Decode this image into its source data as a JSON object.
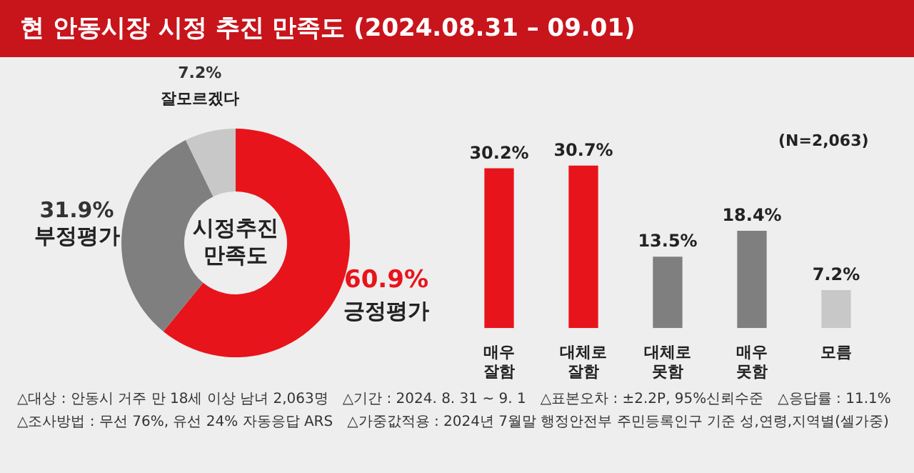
{
  "chart_data": [
    {
      "type": "donut",
      "title": "현 안동시장 시정 추진 만족도 (2024.08.31 – 09.01)",
      "categories": [
        "긍정평가",
        "부정평가",
        "잘모르겠다"
      ],
      "values": [
        60.9,
        31.9,
        7.2
      ],
      "colors": [
        "#e8141b",
        "#7f7f7f",
        "#c8c8c8"
      ],
      "value_labels": [
        "60.9%",
        "31.9%",
        "7.2%"
      ],
      "annotations": [
        "시정추진\n만족도"
      ],
      "legend": false
    },
    {
      "type": "bar",
      "categories": [
        "매우 잘함",
        "대체로 잘함",
        "대체로 못함",
        "매우 못함",
        "모름"
      ],
      "values": [
        30.2,
        30.7,
        13.5,
        18.4,
        7.2
      ],
      "colors": [
        "#e8141b",
        "#e8141b",
        "#7f7f7f",
        "#7f7f7f",
        "#c8c8c8"
      ],
      "value_labels": [
        "30.2%",
        "30.7%",
        "13.5%",
        "18.4%",
        "7.2%"
      ],
      "tick_labels": "x",
      "grid": false,
      "legend": false,
      "annotations": [
        "(N=2,063)",
        "△대상 : 안동시 거주 만 18세 이상 남녀 2,063명",
        "△기간 : 2024. 8. 31 ~ 9. 1",
        "△표본오차 : ±2.2P, 95%신뢰수준",
        "△응답률 : 11.1%",
        "△조사방법 : 무선 76%, 유선 24% 자동응답 ARS",
        "△가중값적용 : 2024년 7월말 행정안전부 주민등록인구 기준 성,연령,지역별(셀가중)"
      ]
    }
  ]
}
